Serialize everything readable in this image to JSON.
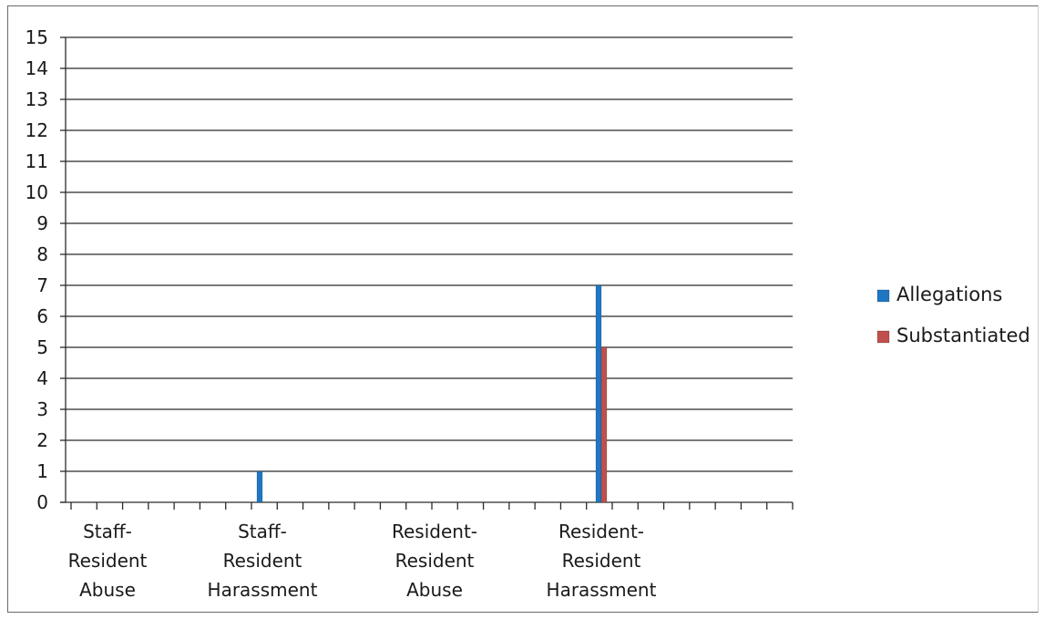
{
  "chart_data": {
    "type": "bar",
    "title": "",
    "xlabel": "",
    "ylabel": "",
    "ylim": [
      0,
      15
    ],
    "yticks": [
      0,
      1,
      2,
      3,
      4,
      5,
      6,
      7,
      8,
      9,
      10,
      11,
      12,
      13,
      14,
      15
    ],
    "grid": true,
    "legend_position": "right",
    "categories": [
      "Staff-Resident Abuse",
      "Staff-Resident Harassment",
      "Resident-Resident Abuse",
      "Resident-Resident Harassment"
    ],
    "category_label_lines": [
      [
        "Staff-",
        "Resident",
        "Abuse"
      ],
      [
        "Staff-",
        "Resident",
        "Harassment"
      ],
      [
        "Resident-",
        "Resident",
        "Abuse"
      ],
      [
        "Resident-",
        "Resident",
        "Harassment"
      ]
    ],
    "series": [
      {
        "name": "Allegations",
        "color": "#1f77c4",
        "values": [
          0,
          1,
          0,
          7
        ]
      },
      {
        "name": "Substantiated",
        "color": "#c0504d",
        "values": [
          0,
          0,
          0,
          5
        ]
      }
    ]
  }
}
